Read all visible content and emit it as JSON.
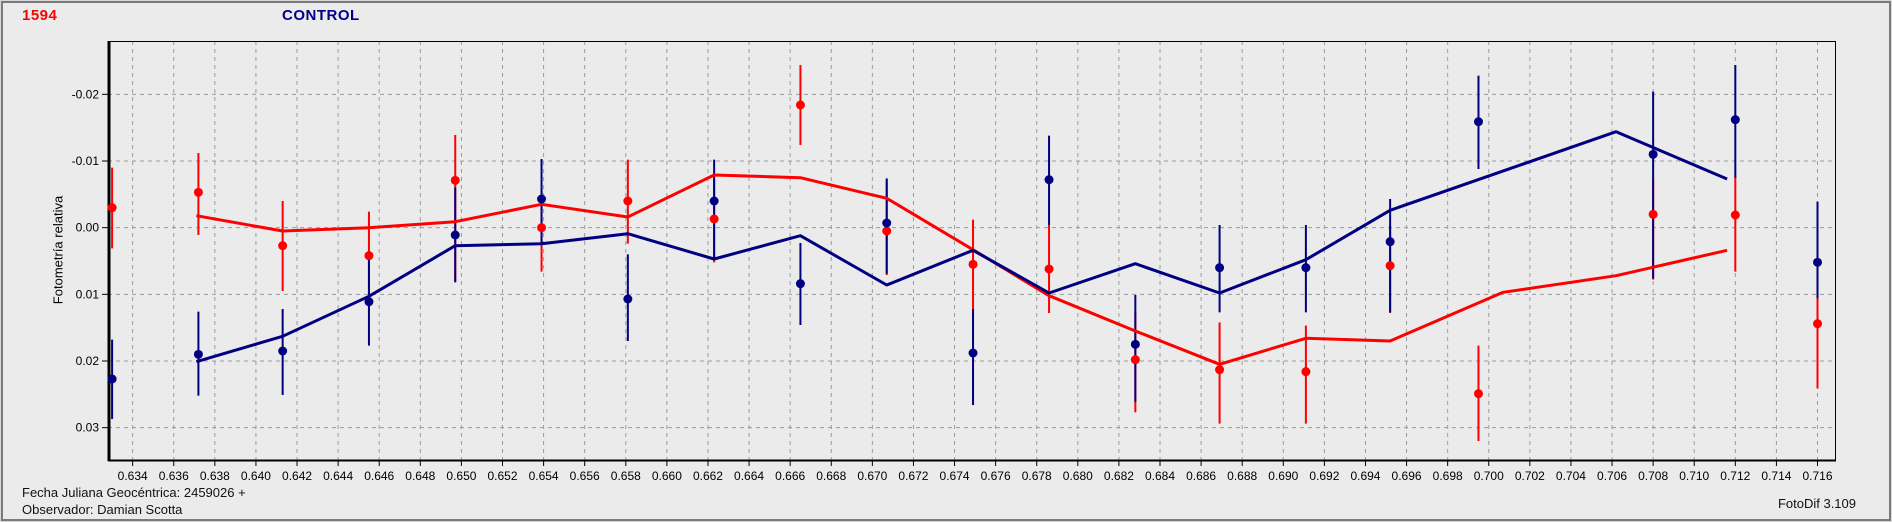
{
  "window": {
    "bg_color": "#ebebeb",
    "frame_dark": "#7a7a7a",
    "frame_light": "#d7d7d7"
  },
  "header": {
    "object_number": "1594",
    "object_number_color": "#ff0000",
    "title": "CONTROL",
    "title_color": "#00008b"
  },
  "footer": {
    "julian_date_line": "Fecha Juliana Geocéntrica: 2459026 +",
    "observer_line": "Observador: Damian Scotta",
    "app_version": "FotoDif 3.109"
  },
  "chart_data": {
    "type": "scatter",
    "title": "CONTROL",
    "xlabel": "",
    "ylabel": "Fotometría relativa",
    "grid": {
      "on": true,
      "color": "#9b9b9b",
      "dash": "4 4"
    },
    "axis_color": "#000000",
    "x_axis": {
      "tick_start": 0.634,
      "tick_step": 0.002,
      "tick_count": 42,
      "decimals": 3,
      "range": [
        0.6328,
        0.7169
      ]
    },
    "y_axis": {
      "tick_start": -0.02,
      "tick_step": 0.01,
      "tick_count": 6,
      "decimals": 2,
      "range_top": -0.028,
      "range_bottom": 0.035,
      "inverted": true
    },
    "point_format": [
      "jd_fraction",
      "relative_mag",
      "error_low",
      "error_high"
    ],
    "series": [
      {
        "name": "asteroid-1594",
        "color": "#ff0000",
        "marker": "circle",
        "points": [
          [
            0.633,
            -0.003,
            -0.009,
            0.0031
          ],
          [
            0.6372,
            -0.0053,
            -0.0112,
            0.0011
          ],
          [
            0.6413,
            0.0027,
            -0.004,
            0.0095
          ],
          [
            0.6455,
            0.0042,
            -0.0024,
            0.0107
          ],
          [
            0.6497,
            -0.0071,
            -0.0139,
            0.0081
          ],
          [
            0.6539,
            0.0,
            -0.0057,
            0.0066
          ],
          [
            0.6581,
            -0.004,
            -0.0102,
            0.0024
          ],
          [
            0.6623,
            -0.0013,
            -0.0072,
            0.0052
          ],
          [
            0.6665,
            -0.0184,
            -0.0244,
            -0.0124
          ],
          [
            0.6707,
            0.0005,
            -0.0072,
            0.0071
          ],
          [
            0.6749,
            0.0055,
            -0.0012,
            0.0127
          ],
          [
            0.6786,
            0.0062,
            -0.0004,
            0.0128
          ],
          [
            0.6828,
            0.0198,
            0.0127,
            0.0277
          ],
          [
            0.6869,
            0.0213,
            0.0142,
            0.0294
          ],
          [
            0.6911,
            0.0216,
            0.0147,
            0.0294
          ],
          [
            0.6952,
            0.0057,
            -0.0003,
            0.0128
          ],
          [
            0.6995,
            0.0249,
            0.0177,
            0.032
          ],
          [
            0.708,
            -0.002,
            -0.0073,
            0.0078
          ],
          [
            0.712,
            -0.0019,
            -0.0079,
            0.0066
          ],
          [
            0.716,
            0.0144,
            0.0047,
            0.0241
          ]
        ],
        "trend_line": [
          [
            0.6371,
            -0.0018
          ],
          [
            0.6413,
            0.0005
          ],
          [
            0.6455,
            0.0
          ],
          [
            0.6497,
            -0.0009
          ],
          [
            0.6539,
            -0.0035
          ],
          [
            0.6581,
            -0.0016
          ],
          [
            0.6623,
            -0.0079
          ],
          [
            0.6665,
            -0.0075
          ],
          [
            0.6707,
            -0.0044
          ],
          [
            0.6749,
            0.0033
          ],
          [
            0.6786,
            0.0102
          ],
          [
            0.6828,
            0.0155
          ],
          [
            0.6869,
            0.0205
          ],
          [
            0.6911,
            0.0166
          ],
          [
            0.6952,
            0.017
          ],
          [
            0.7007,
            0.0097
          ],
          [
            0.7062,
            0.0072
          ],
          [
            0.7116,
            0.0034
          ]
        ]
      },
      {
        "name": "control-star",
        "color": "#000080",
        "marker": "circle",
        "points": [
          [
            0.633,
            0.0227,
            0.0168,
            0.0287
          ],
          [
            0.6372,
            0.019,
            0.0126,
            0.0252
          ],
          [
            0.6413,
            0.0185,
            0.0122,
            0.0251
          ],
          [
            0.6455,
            0.0111,
            0.0042,
            0.0177
          ],
          [
            0.6497,
            0.0011,
            -0.006,
            0.0082
          ],
          [
            0.6539,
            -0.0043,
            -0.0103,
            0.0025
          ],
          [
            0.6581,
            0.0107,
            0.004,
            0.017
          ],
          [
            0.6623,
            -0.004,
            -0.0102,
            0.0049
          ],
          [
            0.6665,
            0.0084,
            0.0023,
            0.0146
          ],
          [
            0.6707,
            -0.0007,
            -0.0074,
            0.0069
          ],
          [
            0.6749,
            0.0188,
            0.0122,
            0.0266
          ],
          [
            0.6786,
            -0.0072,
            -0.0138,
            -0.0004
          ],
          [
            0.6828,
            0.0175,
            0.0101,
            0.0261
          ],
          [
            0.6869,
            0.006,
            -0.0004,
            0.0127
          ],
          [
            0.6911,
            0.006,
            -0.0004,
            0.0127
          ],
          [
            0.6952,
            0.0021,
            -0.0043,
            0.0127
          ],
          [
            0.6995,
            -0.0159,
            -0.0228,
            -0.0088
          ],
          [
            0.708,
            -0.011,
            -0.0204,
            0.0076
          ],
          [
            0.712,
            -0.0162,
            -0.0244,
            -0.0075
          ],
          [
            0.716,
            0.0052,
            -0.0039,
            0.0106
          ]
        ],
        "trend_line": [
          [
            0.6371,
            0.0201
          ],
          [
            0.6413,
            0.0163
          ],
          [
            0.6455,
            0.0103
          ],
          [
            0.6497,
            0.0027
          ],
          [
            0.6539,
            0.0024
          ],
          [
            0.6581,
            0.0009
          ],
          [
            0.6623,
            0.0047
          ],
          [
            0.6665,
            0.0012
          ],
          [
            0.6707,
            0.0086
          ],
          [
            0.6749,
            0.0034
          ],
          [
            0.6786,
            0.0098
          ],
          [
            0.6828,
            0.0054
          ],
          [
            0.6869,
            0.0098
          ],
          [
            0.6911,
            0.0048
          ],
          [
            0.6952,
            -0.0026
          ],
          [
            0.7062,
            -0.0144
          ],
          [
            0.7116,
            -0.0073
          ]
        ]
      }
    ]
  }
}
